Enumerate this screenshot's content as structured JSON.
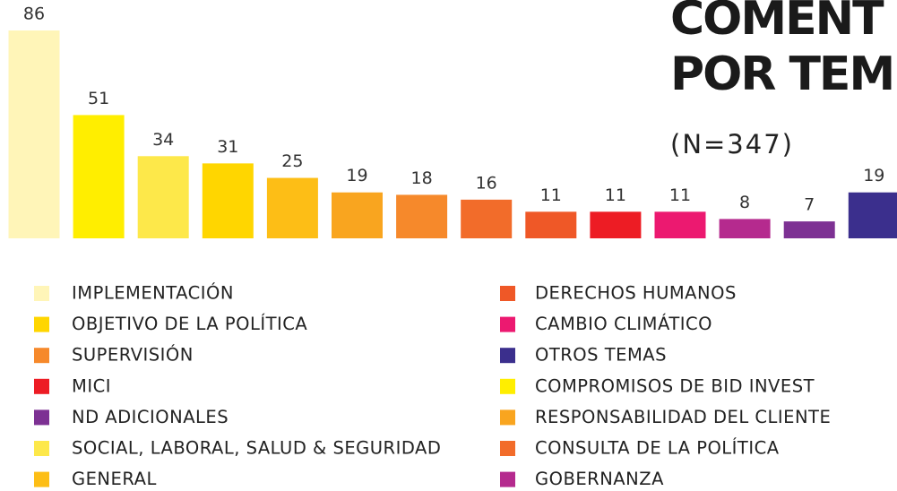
{
  "chart_data": {
    "type": "bar",
    "title": [
      "COMENT",
      "POR TEM"
    ],
    "subtitle": "(N=347)",
    "categories": [
      "IMPLEMENTACIÓN",
      "COMPROMISOS DE BID INVEST",
      "SOCIAL, LABORAL, SALUD & SEGURIDAD",
      "OBJETIVO DE LA POLÍTICA",
      "GENERAL",
      "RESPONSABILIDAD DEL CLIENTE",
      "SUPERVISIÓN",
      "CONSULTA DE LA POLÍTICA",
      "DERECHOS HUMANOS",
      "MICI",
      "CAMBIO CLIMÁTICO",
      "GOBERNANZA",
      "ND ADICIONALES",
      "OTROS TEMAS"
    ],
    "values": [
      86,
      51,
      34,
      31,
      25,
      19,
      18,
      16,
      11,
      11,
      11,
      8,
      7,
      19
    ],
    "colors": [
      "#fff5b8",
      "#ffee00",
      "#fde84a",
      "#ffd600",
      "#fdbe16",
      "#f9a51f",
      "#f6892b",
      "#f26c2a",
      "#ef5827",
      "#ed1c24",
      "#ec1970",
      "#b52a8e",
      "#7d3193",
      "#3b2f8d"
    ]
  }
}
